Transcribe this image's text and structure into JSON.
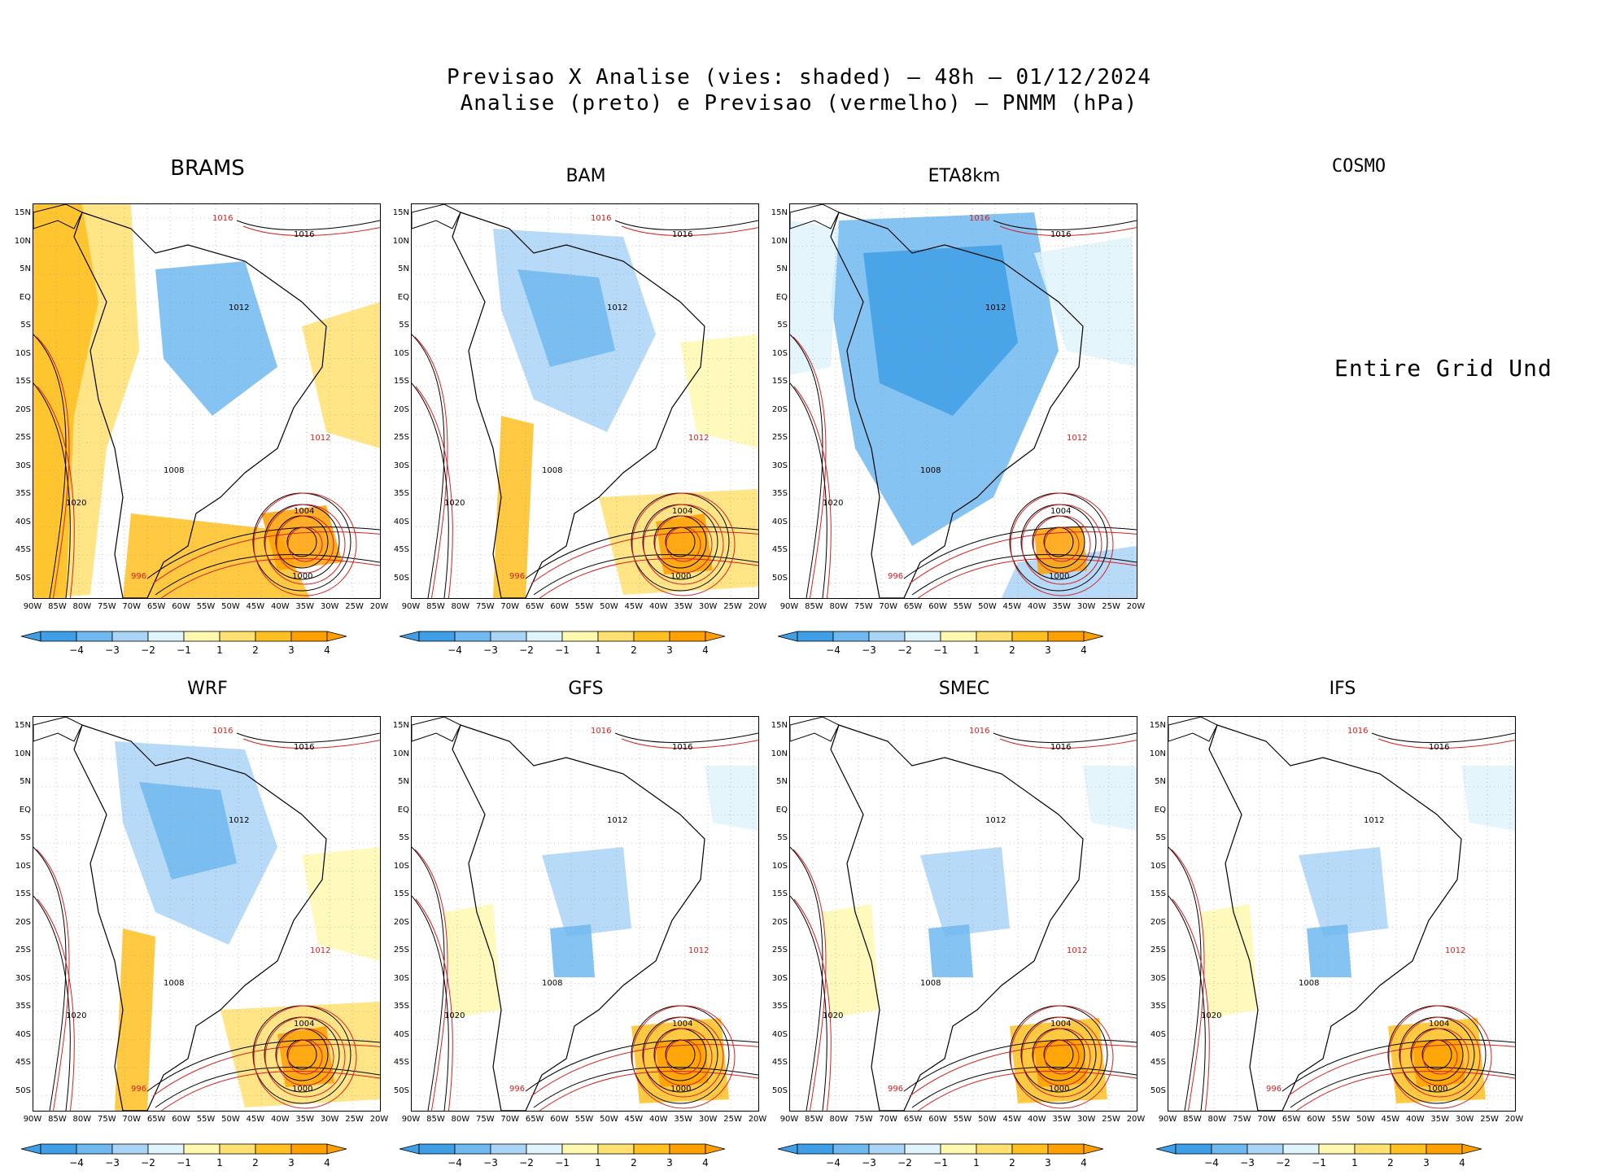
{
  "title_line1": "Previsao X Analise (vies: shaded) – 48h – 01/12/2024",
  "title_line2": "Analise (preto) e Previsao (vermelho) – PNMM (hPa)",
  "panels": [
    {
      "label": "BRAMS",
      "bias": "warm"
    },
    {
      "label": "BAM",
      "bias": "mixed"
    },
    {
      "label": "ETA8km",
      "bias": "cold"
    },
    {
      "label": "WRF",
      "bias": "mixed"
    },
    {
      "label": "GFS",
      "bias": "light"
    },
    {
      "label": "SMEC",
      "bias": "light"
    },
    {
      "label": "IFS",
      "bias": "light"
    }
  ],
  "cosmo": {
    "label": "COSMO",
    "message": "Entire Grid Und"
  },
  "y_ticks": [
    "15N",
    "10N",
    "5N",
    "EQ",
    "5S",
    "10S",
    "15S",
    "20S",
    "25S",
    "30S",
    "35S",
    "40S",
    "45S",
    "50S"
  ],
  "x_ticks": [
    "90W",
    "85W",
    "80W",
    "75W",
    "70W",
    "65W",
    "60W",
    "55W",
    "50W",
    "45W",
    "40W",
    "35W",
    "30W",
    "25W",
    "20W"
  ],
  "colorbar_labels": [
    "−4",
    "−3",
    "−2",
    "−1",
    "1",
    "2",
    "3",
    "4"
  ],
  "colorbar_colors": [
    "#3f9fe6",
    "#70b8f0",
    "#a9d4f6",
    "#dff4fb",
    "#ffffff",
    "#fff9b0",
    "#ffe070",
    "#ffc020",
    "#ffa000"
  ],
  "contour_labels": {
    "high": "1016",
    "mid": "1012",
    "low": "1008",
    "west": "1020",
    "cyclone_outer": "1004",
    "cyclone_inner": "1000",
    "trough": "996"
  },
  "colors": {
    "analysis": "#000000",
    "forecast": "#d62020"
  }
}
